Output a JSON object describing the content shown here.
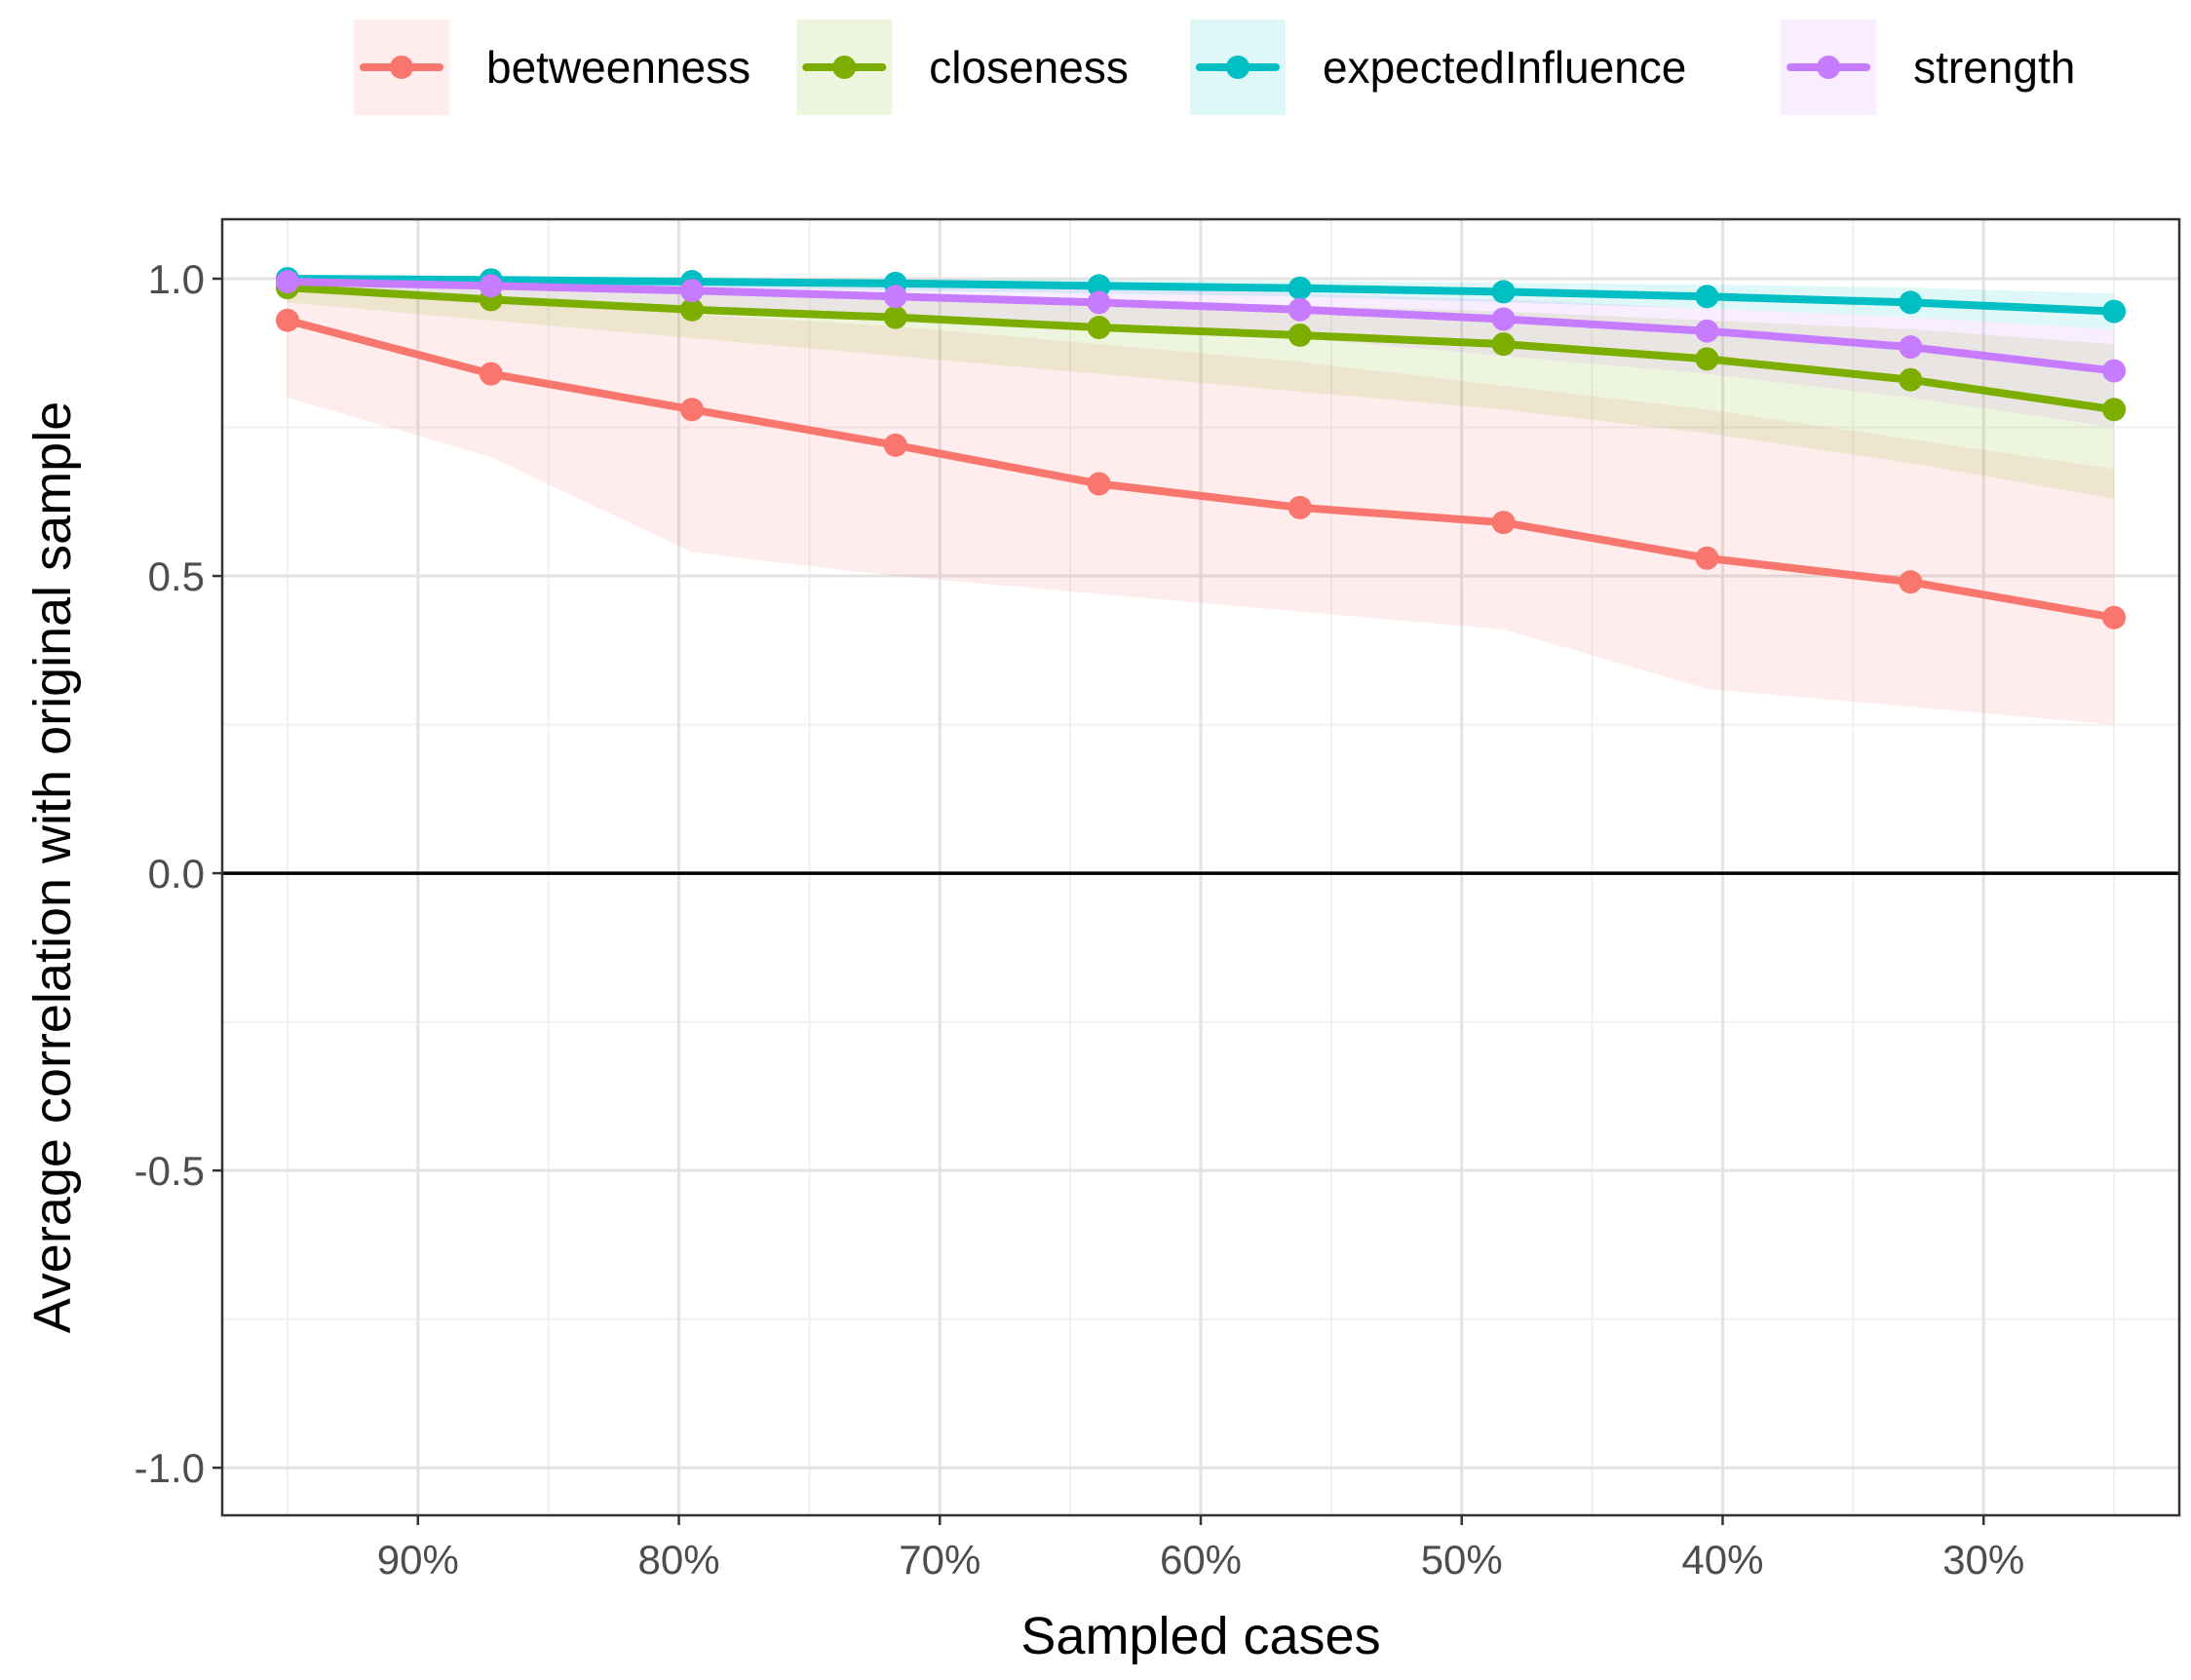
{
  "chart_data": {
    "type": "line",
    "xlabel": "Sampled cases",
    "ylabel": "Average correlation with original sample",
    "x_reversed": true,
    "xlim": [
      22.5,
      97.5
    ],
    "ylim": [
      -1.08,
      1.1
    ],
    "x_ticks": [
      {
        "value": 90,
        "label": "90%"
      },
      {
        "value": 80,
        "label": "80%"
      },
      {
        "value": 70,
        "label": "70%"
      },
      {
        "value": 60,
        "label": "60%"
      },
      {
        "value": 50,
        "label": "50%"
      },
      {
        "value": 40,
        "label": "40%"
      },
      {
        "value": 30,
        "label": "30%"
      }
    ],
    "y_ticks": [
      {
        "value": 1.0,
        "label": "1.0"
      },
      {
        "value": 0.5,
        "label": "0.5"
      },
      {
        "value": 0.0,
        "label": "0.0"
      },
      {
        "value": -0.5,
        "label": "-0.5"
      },
      {
        "value": -1.0,
        "label": "-1.0"
      }
    ],
    "grid": true,
    "reference_line_y": 0,
    "legend_position": "top",
    "x": [
      95,
      87.2,
      79.5,
      71.7,
      63.9,
      56.2,
      48.4,
      40.6,
      32.8,
      25
    ],
    "series": [
      {
        "name": "betweenness",
        "color": "#F8766D",
        "values": [
          0.93,
          0.84,
          0.78,
          0.72,
          0.655,
          0.615,
          0.59,
          0.53,
          0.49,
          0.43
        ],
        "lower": [
          0.8,
          0.7,
          0.54,
          0.5,
          0.47,
          0.44,
          0.41,
          0.31,
          0.28,
          0.25
        ],
        "upper": [
          0.99,
          0.97,
          0.94,
          0.92,
          0.89,
          0.86,
          0.82,
          0.78,
          0.73,
          0.68
        ]
      },
      {
        "name": "closeness",
        "color": "#7CAE00",
        "values": [
          0.985,
          0.965,
          0.948,
          0.935,
          0.918,
          0.905,
          0.89,
          0.865,
          0.83,
          0.78
        ],
        "lower": [
          0.96,
          0.93,
          0.9,
          0.87,
          0.84,
          0.81,
          0.78,
          0.74,
          0.69,
          0.63
        ],
        "upper": [
          1.0,
          0.99,
          0.985,
          0.975,
          0.965,
          0.955,
          0.945,
          0.93,
          0.915,
          0.89
        ]
      },
      {
        "name": "expectedInfluence",
        "color": "#00BFC4",
        "values": [
          1.0,
          0.998,
          0.995,
          0.992,
          0.988,
          0.984,
          0.978,
          0.97,
          0.96,
          0.945
        ],
        "lower": [
          0.995,
          0.99,
          0.985,
          0.98,
          0.975,
          0.97,
          0.96,
          0.95,
          0.935,
          0.915
        ],
        "upper": [
          1.0,
          1.0,
          1.0,
          1.0,
          0.998,
          0.996,
          0.993,
          0.99,
          0.985,
          0.975
        ]
      },
      {
        "name": "strength",
        "color": "#C77CFF",
        "values": [
          0.995,
          0.988,
          0.98,
          0.97,
          0.96,
          0.948,
          0.932,
          0.912,
          0.885,
          0.845
        ],
        "lower": [
          0.985,
          0.97,
          0.955,
          0.94,
          0.92,
          0.9,
          0.87,
          0.84,
          0.8,
          0.75
        ],
        "upper": [
          1.0,
          1.0,
          0.995,
          0.99,
          0.985,
          0.975,
          0.965,
          0.95,
          0.935,
          0.915
        ]
      }
    ]
  }
}
